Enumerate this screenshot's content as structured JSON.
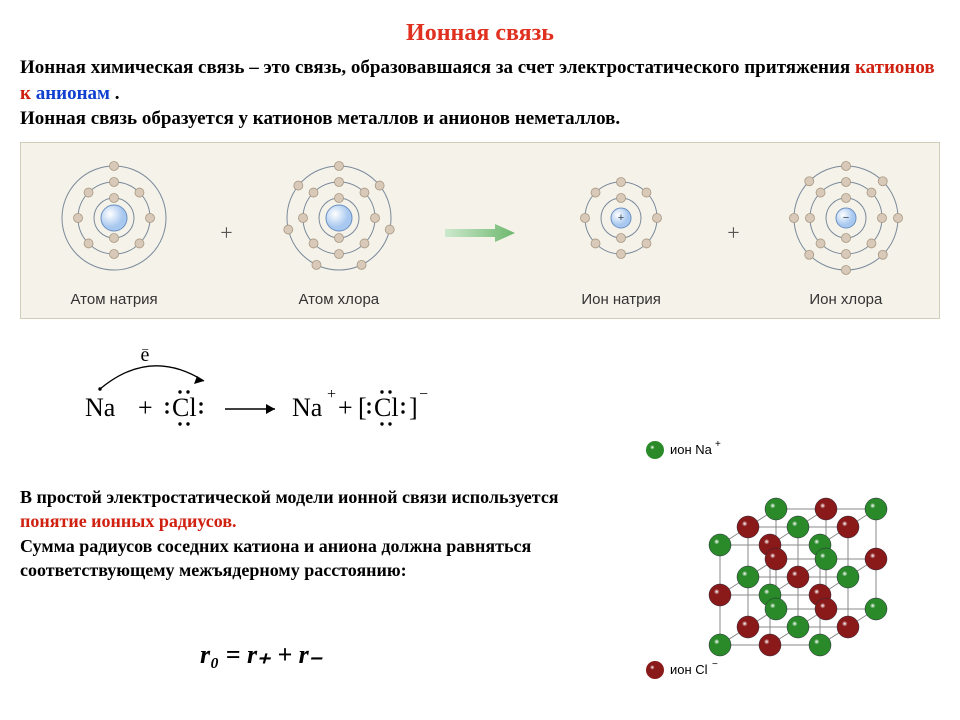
{
  "title": {
    "text": "Ионная связь",
    "color": "#e03020"
  },
  "definition": {
    "part1": "Ионная химическая связь – это связь, образовавшаяся за счет электростатического притяжения",
    "cation_word": "катионов к",
    "anion_word": "анионам",
    "part2": ".",
    "part3": "Ионная связь образуется у катионов металлов и анионов неметаллов.",
    "cation_color": "#d02010",
    "anion_color": "#1040d0"
  },
  "atoms_panel": {
    "bg": "#f5f2ea",
    "shell_color": "#7a8a9a",
    "electron_fill": "#d8c9b8",
    "electron_stroke": "#a89882",
    "nucleus_fill": "#a8c8f0",
    "nucleus_stroke": "#6a90c0",
    "arrow_color": "#7db87d",
    "labels": {
      "na_atom": "Атом натрия",
      "cl_atom": "Атом хлора",
      "na_ion": "Ион натрия",
      "cl_ion": "Ион хлора"
    },
    "na_atom": {
      "shells_r": [
        20,
        36,
        52
      ],
      "nucleus_r": 13,
      "electrons": [
        [
          2,
          20
        ],
        [
          8,
          36
        ],
        [
          1,
          52
        ]
      ]
    },
    "cl_atom": {
      "shells_r": [
        20,
        36,
        52
      ],
      "nucleus_r": 13,
      "electrons": [
        [
          2,
          20
        ],
        [
          8,
          36
        ],
        [
          7,
          52
        ]
      ]
    },
    "na_ion": {
      "shells_r": [
        20,
        36
      ],
      "nucleus_r": 10,
      "sign": "+",
      "electrons": [
        [
          2,
          20
        ],
        [
          8,
          36
        ]
      ]
    },
    "cl_ion": {
      "shells_r": [
        20,
        36,
        52
      ],
      "nucleus_r": 10,
      "sign": "−",
      "electrons": [
        [
          2,
          20
        ],
        [
          8,
          36
        ],
        [
          8,
          52
        ]
      ]
    }
  },
  "equation": {
    "na": "Na",
    "plus": "+",
    "cl": "Cl",
    "arrow": "→",
    "na_plus": "Na",
    "na_plus_sup": "+",
    "cl_minus_sup": "−",
    "e_label": "e"
  },
  "footer": {
    "part1": "В простой электростатической модели ионной связи используется",
    "highlight": "понятие ионных радиусов.",
    "highlight_color": "#d02010",
    "part2": "Сумма радиусов соседних катиона и аниона должна равняться соответствующему межъядерному расстоянию:"
  },
  "formula": {
    "text": "r₀ = r₊ + r₋"
  },
  "lattice": {
    "na_color": "#2a8a2a",
    "cl_color": "#8a1a1a",
    "edge_color": "#888888",
    "na_label": "ион Na",
    "na_sup": "+",
    "cl_label": "ион Cl",
    "cl_sup": "−",
    "ball_r": 11
  }
}
